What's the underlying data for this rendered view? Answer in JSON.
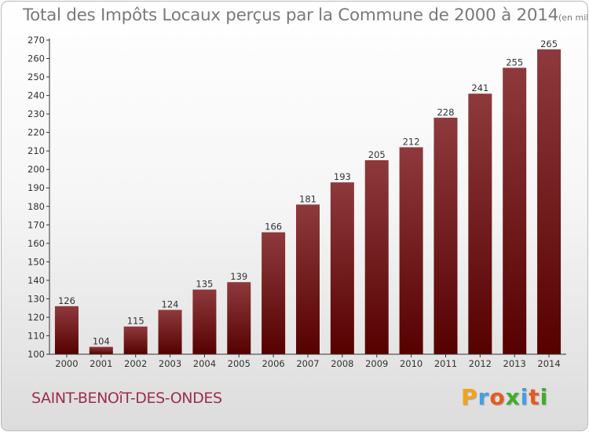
{
  "chart_data": {
    "type": "bar",
    "title": "Total des Impôts Locaux perçus par la Commune de 2000 à 2014",
    "unit_note": "(en milliers d'€)",
    "categories": [
      "2000",
      "2001",
      "2002",
      "2003",
      "2004",
      "2005",
      "2006",
      "2007",
      "2008",
      "2009",
      "2010",
      "2011",
      "2012",
      "2013",
      "2014"
    ],
    "values": [
      126,
      104,
      115,
      124,
      135,
      139,
      166,
      181,
      193,
      205,
      212,
      228,
      241,
      255,
      265
    ],
    "xlabel": "",
    "ylabel": "",
    "ylim": [
      100,
      270
    ],
    "yticks": [
      100,
      110,
      120,
      130,
      140,
      150,
      160,
      170,
      180,
      190,
      200,
      210,
      220,
      230,
      240,
      250,
      260,
      270
    ],
    "grid": false,
    "legend": "none"
  },
  "footer": {
    "commune": "SAINT-BENOîT-DES-ONDES",
    "brand_letters": [
      "P",
      "r",
      "o",
      "x",
      "i",
      "t",
      "i"
    ],
    "brand_colors": [
      "#f2a31b",
      "#4a9de0",
      "#e65a1e",
      "#3fae2a",
      "#4a9de0",
      "#e65a1e",
      "#3fae2a"
    ]
  },
  "colors": {
    "bar_top": "#8e3a3d",
    "bar_bottom": "#560000",
    "axis": "#333333",
    "text": "#333333"
  }
}
